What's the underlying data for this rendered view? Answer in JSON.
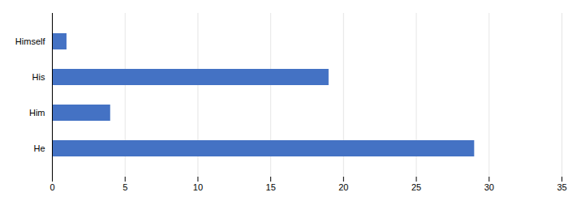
{
  "chart_data": {
    "type": "bar",
    "orientation": "horizontal",
    "categories": [
      "He",
      "Him",
      "His",
      "Himself"
    ],
    "values": [
      29,
      4,
      19,
      1
    ],
    "color": "#4472C4",
    "xlim": [
      0,
      35
    ],
    "xticks": [
      0,
      5,
      10,
      15,
      20,
      25,
      30,
      35
    ],
    "grid": true
  }
}
